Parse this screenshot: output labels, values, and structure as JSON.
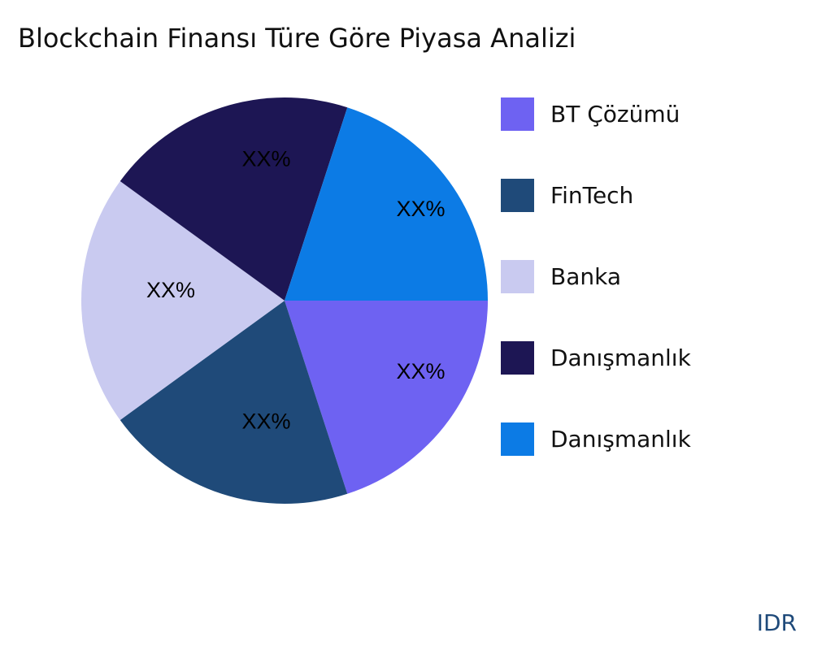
{
  "chart_data": {
    "type": "pie",
    "title": "Blockchain Finansı Türe Göre Piyasa Analizi",
    "slices": [
      {
        "label": "BT Çözümü",
        "value": 20,
        "data_label": "XX%",
        "color": "#6E62F2"
      },
      {
        "label": "FinTech",
        "value": 20,
        "data_label": "XX%",
        "color": "#1F4A79"
      },
      {
        "label": "Banka",
        "value": 20,
        "data_label": "XX%",
        "color": "#C9CAF0"
      },
      {
        "label": "Danışmanlık",
        "value": 20,
        "data_label": "XX%",
        "color": "#1D1654"
      },
      {
        "label": "Danışmanlık",
        "value": 20,
        "data_label": "XX%",
        "color": "#0C7BE5"
      }
    ],
    "legend_placement": "right"
  },
  "footer": "IDR"
}
